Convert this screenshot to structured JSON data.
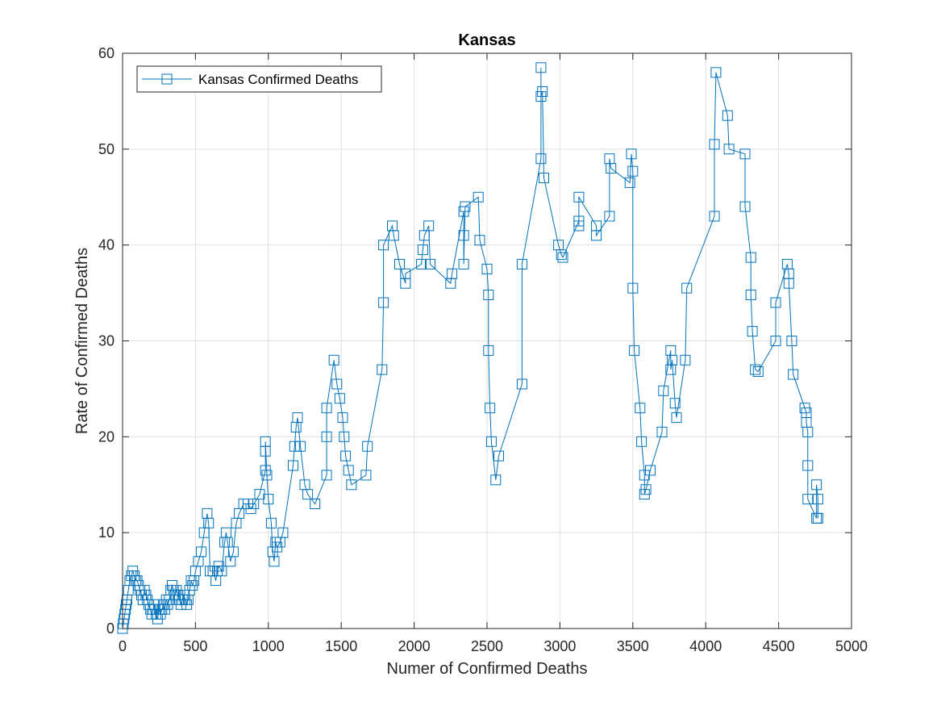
{
  "chart_data": {
    "type": "line",
    "title": "Kansas",
    "xlabel": "Numer of Confirmed Deaths",
    "ylabel": "Rate of Confirmed Deaths",
    "xlim": [
      0,
      5000
    ],
    "ylim": [
      0,
      60
    ],
    "xticks": [
      0,
      500,
      1000,
      1500,
      2000,
      2500,
      3000,
      3500,
      4000,
      4500,
      5000
    ],
    "yticks": [
      0,
      10,
      20,
      30,
      40,
      50,
      60
    ],
    "grid": true,
    "legend_position": "top-left",
    "marker": "square",
    "color": "#0072BD",
    "series": [
      {
        "name": "Kansas Confirmed Deaths",
        "x": [
          0,
          5,
          10,
          15,
          20,
          25,
          30,
          40,
          50,
          60,
          70,
          80,
          90,
          100,
          110,
          120,
          130,
          140,
          150,
          160,
          170,
          180,
          190,
          200,
          210,
          220,
          230,
          240,
          250,
          260,
          270,
          280,
          290,
          300,
          310,
          320,
          330,
          340,
          350,
          360,
          370,
          380,
          390,
          400,
          410,
          420,
          430,
          440,
          450,
          460,
          470,
          480,
          490,
          500,
          520,
          540,
          560,
          580,
          590,
          600,
          620,
          640,
          650,
          660,
          680,
          700,
          710,
          720,
          740,
          760,
          780,
          800,
          830,
          860,
          880,
          900,
          940,
          980,
          980,
          980,
          990,
          1000,
          1020,
          1030,
          1040,
          1050,
          1060,
          1080,
          1100,
          1170,
          1180,
          1190,
          1200,
          1220,
          1250,
          1270,
          1320,
          1400,
          1400,
          1400,
          1450,
          1470,
          1490,
          1510,
          1520,
          1530,
          1550,
          1570,
          1670,
          1680,
          1780,
          1790,
          1790,
          1850,
          1860,
          1900,
          1940,
          1940,
          2050,
          2060,
          2070,
          2100,
          2110,
          2250,
          2260,
          2340,
          2340,
          2340,
          2350,
          2440,
          2450,
          2500,
          2510,
          2510,
          2520,
          2530,
          2560,
          2580,
          2740,
          2740,
          2870,
          2870,
          2870,
          2880,
          2890,
          2990,
          3010,
          3020,
          3130,
          3130,
          3130,
          3250,
          3250,
          3340,
          3340,
          3350,
          3480,
          3490,
          3500,
          3500,
          3510,
          3550,
          3560,
          3580,
          3580,
          3590,
          3620,
          3700,
          3710,
          3760,
          3760,
          3770,
          3790,
          3800,
          3860,
          3870,
          4060,
          4060,
          4070,
          4150,
          4160,
          4270,
          4270,
          4310,
          4310,
          4320,
          4340,
          4360,
          4480,
          4480,
          4560,
          4570,
          4570,
          4590,
          4600,
          4680,
          4690,
          4690,
          4700,
          4700,
          4700,
          4760,
          4760,
          4770,
          4770
        ],
        "y": [
          0,
          0.5,
          1,
          1.5,
          2,
          2.5,
          3,
          4,
          5,
          5.5,
          6,
          5.5,
          5,
          5,
          4.5,
          4,
          3.5,
          3,
          4,
          3.5,
          3,
          2.5,
          2,
          1.5,
          2,
          2.5,
          1.5,
          1,
          2,
          1.5,
          2,
          2.5,
          2,
          3,
          2.5,
          3,
          4,
          4.5,
          4,
          3.5,
          4,
          3.5,
          3,
          2.5,
          3,
          3.5,
          3,
          2.5,
          3,
          4,
          5,
          4.5,
          5,
          6,
          7,
          8,
          10,
          12,
          11,
          6,
          6,
          5,
          6,
          6.5,
          6,
          9,
          10,
          9,
          7,
          8,
          11,
          12,
          13,
          13,
          12.5,
          13,
          14,
          16.5,
          18.5,
          19.5,
          16,
          13.5,
          11,
          8,
          7,
          9,
          8.5,
          9,
          10,
          17,
          19,
          21,
          22,
          19,
          15,
          14,
          13,
          16,
          20,
          23,
          28,
          25.5,
          24,
          22,
          20,
          18,
          16.5,
          15,
          16,
          19,
          27,
          34,
          40,
          42,
          41,
          38,
          36,
          37,
          38,
          39.5,
          41,
          42,
          38,
          36,
          37,
          43.5,
          41,
          38,
          44,
          45,
          40.5,
          37.5,
          34.8,
          29,
          23,
          19.5,
          15.5,
          18,
          25.5,
          38,
          49,
          58.5,
          55.5,
          56,
          47,
          40,
          39,
          38.7,
          42.5,
          42,
          45,
          42,
          41,
          43,
          49,
          48,
          46.5,
          49.5,
          47.7,
          35.5,
          29,
          23,
          19.5,
          16,
          14,
          14.5,
          16.5,
          20.5,
          24.8,
          29,
          27,
          28,
          23.5,
          22,
          28,
          35.5,
          43,
          50.5,
          58,
          53.5,
          50,
          49.5,
          44,
          38.7,
          34.8,
          31,
          27,
          26.8,
          30,
          34,
          38,
          37,
          36,
          30,
          26.5,
          23,
          22.5,
          21.5,
          20.5,
          17,
          13.5,
          11.5,
          15,
          13.5,
          11.5
        ]
      }
    ]
  }
}
